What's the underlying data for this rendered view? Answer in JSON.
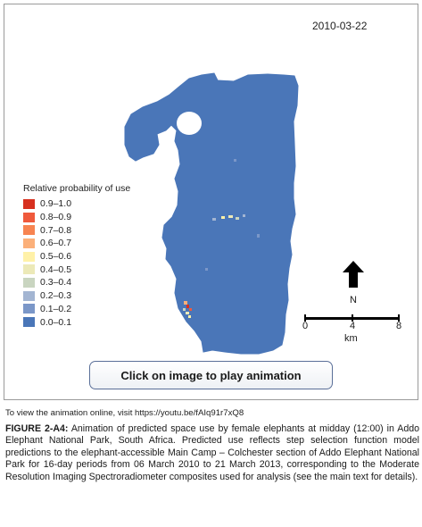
{
  "map": {
    "date": "2010-03-22",
    "park_color": "#4a76b8",
    "legend": {
      "title": "Relative probability of use",
      "items": [
        {
          "label": "0.9–1.0",
          "color": "#d7301f"
        },
        {
          "label": "0.8–0.9",
          "color": "#ef5a3c"
        },
        {
          "label": "0.7–0.8",
          "color": "#f78451"
        },
        {
          "label": "0.6–0.7",
          "color": "#fbb07a"
        },
        {
          "label": "0.5–0.6",
          "color": "#fff1a8"
        },
        {
          "label": "0.4–0.5",
          "color": "#ece9b8"
        },
        {
          "label": "0.3–0.4",
          "color": "#c9d5c0"
        },
        {
          "label": "0.2–0.3",
          "color": "#a3b5d2"
        },
        {
          "label": "0.1–0.2",
          "color": "#7b97c8"
        },
        {
          "label": "0.0–0.1",
          "color": "#4a76b8"
        }
      ]
    },
    "north_label": "N",
    "scale": {
      "ticks": [
        "0",
        "4",
        "8"
      ],
      "unit": "km"
    }
  },
  "play_button": {
    "label": "Click on image to play animation"
  },
  "online_note": "To view the animation online, visit https://youtu.be/fAIq91r7xQ8",
  "caption": {
    "label": "FIGURE 2-A4:",
    "text": "Animation of predicted space use by female elephants at midday (12:00) in Addo Elephant National Park, South Africa. Predicted use reflects step selection function model predictions to the elephant-accessible Main Camp – Colchester section of Addo Elephant National Park for 16-day periods from 06 March 2010 to 21 March 2013, corresponding to the Moderate Resolution Imaging Spectroradiometer composites used for analysis (see the main text for details)."
  }
}
